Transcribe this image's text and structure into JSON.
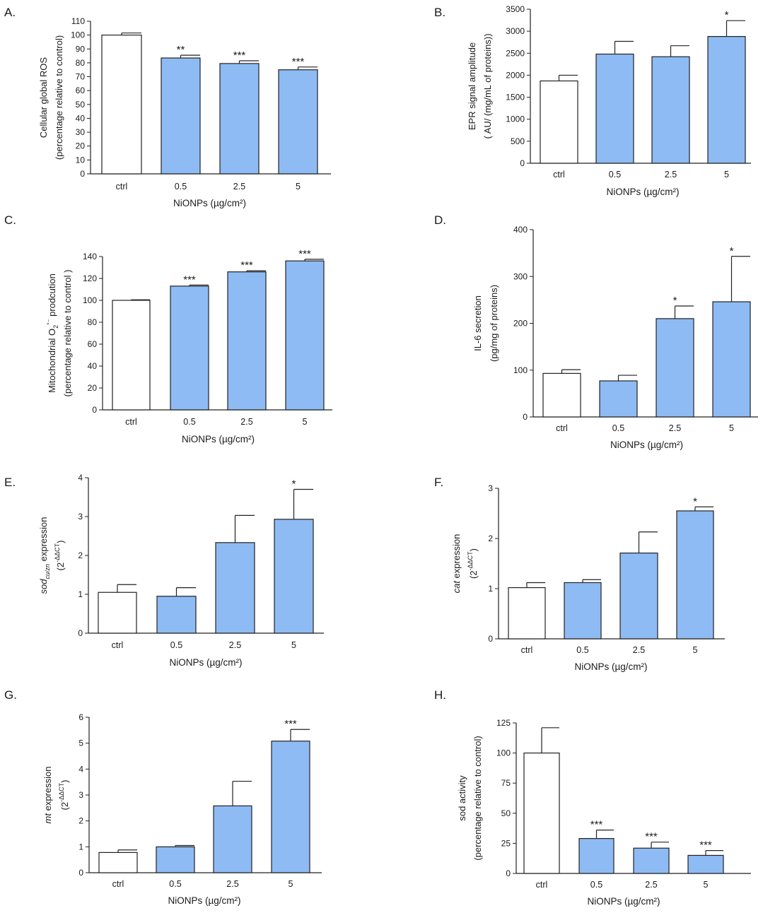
{
  "chart_data": [
    {
      "panel": "A.",
      "type": "bar",
      "categories": [
        "ctrl",
        "0.5",
        "2.5",
        "5"
      ],
      "values": [
        100,
        83.5,
        79.5,
        75
      ],
      "errors": [
        1.5,
        2,
        2,
        2
      ],
      "significance": [
        "",
        "**",
        "***",
        "***"
      ],
      "ylim": [
        0,
        110
      ],
      "yticks": [
        0,
        10,
        20,
        30,
        40,
        50,
        60,
        70,
        80,
        90,
        100,
        110
      ],
      "xlabel": "NiONPs (µg/cm²)",
      "ylabel": [
        "Cellular global ROS",
        "(percentage relative to control)"
      ],
      "bar_colors": [
        "#ffffff",
        "#8ebbf3",
        "#8ebbf3",
        "#8ebbf3"
      ]
    },
    {
      "panel": "B.",
      "type": "bar",
      "categories": [
        "ctrl",
        "0.5",
        "2.5",
        "5"
      ],
      "values": [
        1870,
        2480,
        2420,
        2880
      ],
      "errors": [
        130,
        290,
        250,
        360
      ],
      "significance": [
        "",
        "",
        "",
        "*"
      ],
      "ylim": [
        0,
        3500
      ],
      "yticks": [
        0,
        500,
        1000,
        1500,
        2000,
        2500,
        3000,
        3500
      ],
      "xlabel": "NiONPs (µg/cm²)",
      "ylabel": [
        "EPR signal amplitude",
        "( AU/ (mg/mL of proteins))"
      ],
      "bar_colors": [
        "#ffffff",
        "#8ebbf3",
        "#8ebbf3",
        "#8ebbf3"
      ]
    },
    {
      "panel": "C.",
      "type": "bar",
      "categories": [
        "ctrl",
        "0.5",
        "2.5",
        "5"
      ],
      "values": [
        100,
        113,
        126,
        136
      ],
      "errors": [
        0.5,
        1,
        1,
        1.5
      ],
      "significance": [
        "",
        "***",
        "***",
        "***"
      ],
      "ylim": [
        0,
        140
      ],
      "yticks": [
        0,
        20,
        40,
        60,
        80,
        100,
        120,
        140
      ],
      "xlabel": "NiONPs (µg/cm²)",
      "ylabel": [
        "Mitochondrial O2°⁻ prodcution",
        "(percentage relative to control )"
      ],
      "bar_colors": [
        "#ffffff",
        "#8ebbf3",
        "#8ebbf3",
        "#8ebbf3"
      ]
    },
    {
      "panel": "D.",
      "type": "bar",
      "categories": [
        "ctrl",
        "0.5",
        "2.5",
        "5"
      ],
      "values": [
        93,
        77,
        210,
        246
      ],
      "errors": [
        8,
        12,
        27,
        97
      ],
      "significance": [
        "",
        "",
        "*",
        "*"
      ],
      "ylim": [
        0,
        400
      ],
      "yticks": [
        0,
        100,
        200,
        300,
        400
      ],
      "xlabel": "NiONPs (µg/cm²)",
      "ylabel": [
        "IL-6 secretion",
        "(pg/mg of proteins)"
      ],
      "bar_colors": [
        "#ffffff",
        "#8ebbf3",
        "#8ebbf3",
        "#8ebbf3"
      ]
    },
    {
      "panel": "E.",
      "type": "bar",
      "categories": [
        "ctrl",
        "0.5",
        "2.5",
        "5"
      ],
      "values": [
        1.05,
        0.95,
        2.33,
        2.93
      ],
      "errors": [
        0.2,
        0.22,
        0.7,
        0.77
      ],
      "significance": [
        "",
        "",
        "",
        "*"
      ],
      "ylim": [
        0,
        4
      ],
      "yticks": [
        0,
        1,
        2,
        3,
        4
      ],
      "xlabel": "NiONPs (µg/cm²)",
      "ylabel": [
        "sodcu/zn expression",
        "(2-ΔΔCT)"
      ],
      "bar_colors": [
        "#ffffff",
        "#8ebbf3",
        "#8ebbf3",
        "#8ebbf3"
      ]
    },
    {
      "panel": "F.",
      "type": "bar",
      "categories": [
        "ctrl",
        "0.5",
        "2.5",
        "5"
      ],
      "values": [
        1.02,
        1.12,
        1.71,
        2.55
      ],
      "errors": [
        0.1,
        0.06,
        0.42,
        0.08
      ],
      "significance": [
        "",
        "",
        "",
        "*"
      ],
      "ylim": [
        0,
        3
      ],
      "yticks": [
        0,
        1,
        2,
        3
      ],
      "xlabel": "NiONPs (µg/cm²)",
      "ylabel": [
        "cat expression",
        "(2-ΔΔCT)"
      ],
      "bar_colors": [
        "#ffffff",
        "#8ebbf3",
        "#8ebbf3",
        "#8ebbf3"
      ]
    },
    {
      "panel": "G.",
      "type": "bar",
      "categories": [
        "ctrl",
        "0.5",
        "2.5",
        "5"
      ],
      "values": [
        0.78,
        1.0,
        2.58,
        5.08
      ],
      "errors": [
        0.1,
        0.05,
        0.95,
        0.45
      ],
      "significance": [
        "",
        "",
        "",
        "***"
      ],
      "ylim": [
        0,
        6
      ],
      "yticks": [
        0,
        1,
        2,
        3,
        4,
        5,
        6
      ],
      "xlabel": "NiONPs (µg/cm²)",
      "ylabel": [
        "mt expression",
        "(2-ΔΔCT)"
      ],
      "bar_colors": [
        "#ffffff",
        "#8ebbf3",
        "#8ebbf3",
        "#8ebbf3"
      ]
    },
    {
      "panel": "H.",
      "type": "bar",
      "categories": [
        "ctrl",
        "0.5",
        "2.5",
        "5"
      ],
      "values": [
        100,
        29,
        21,
        15
      ],
      "errors": [
        21,
        7,
        5,
        4
      ],
      "significance": [
        "",
        "***",
        "***",
        "***"
      ],
      "ylim": [
        0,
        125
      ],
      "yticks": [
        0,
        25,
        50,
        75,
        100,
        125
      ],
      "xlabel": "NiONPs (µg/cm²)",
      "ylabel": [
        "sod activity",
        "(percentage relative to control)"
      ],
      "bar_colors": [
        "#ffffff",
        "#8ebbf3",
        "#8ebbf3",
        "#8ebbf3"
      ]
    }
  ]
}
